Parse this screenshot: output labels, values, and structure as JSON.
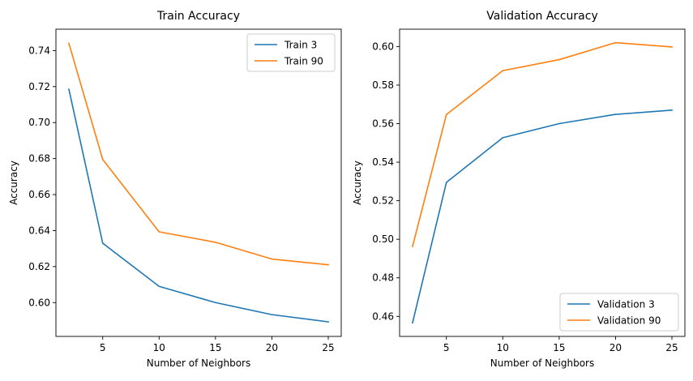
{
  "chart_data": [
    {
      "type": "line",
      "title": "Train Accuracy",
      "xlabel": "Number of Neighbors",
      "ylabel": "Accuracy",
      "x": [
        2,
        5,
        10,
        15,
        20,
        25
      ],
      "xticks": [
        5,
        10,
        15,
        20,
        25
      ],
      "yticks": [
        0.6,
        0.62,
        0.64,
        0.66,
        0.68,
        0.7,
        0.72,
        0.74
      ],
      "xlim": [
        0.85,
        26.15
      ],
      "ylim": [
        0.5812,
        0.7519
      ],
      "grid": false,
      "legend_position": "top-right",
      "series": [
        {
          "name": "Train 3",
          "color": "#1f77b4",
          "values": [
            0.7185,
            0.633,
            0.609,
            0.6,
            0.5933,
            0.5893
          ]
        },
        {
          "name": "Train 90",
          "color": "#ff7f0e",
          "values": [
            0.744,
            0.6795,
            0.6393,
            0.6335,
            0.6242,
            0.621
          ]
        }
      ]
    },
    {
      "type": "line",
      "title": "Validation Accuracy",
      "xlabel": "Number of Neighbors",
      "ylabel": "Accuracy",
      "x": [
        2,
        5,
        10,
        15,
        20,
        25
      ],
      "xticks": [
        5,
        10,
        15,
        20,
        25
      ],
      "yticks": [
        0.46,
        0.48,
        0.5,
        0.52,
        0.54,
        0.56,
        0.58,
        0.6
      ],
      "xlim": [
        0.85,
        26.15
      ],
      "ylim": [
        0.4496,
        0.609
      ],
      "grid": false,
      "legend_position": "bottom-right",
      "series": [
        {
          "name": "Validation 3",
          "color": "#1f77b4",
          "values": [
            0.4567,
            0.5295,
            0.5527,
            0.56,
            0.5648,
            0.567
          ]
        },
        {
          "name": "Validation 90",
          "color": "#ff7f0e",
          "values": [
            0.4963,
            0.5647,
            0.5875,
            0.5932,
            0.602,
            0.5998
          ]
        }
      ]
    }
  ]
}
